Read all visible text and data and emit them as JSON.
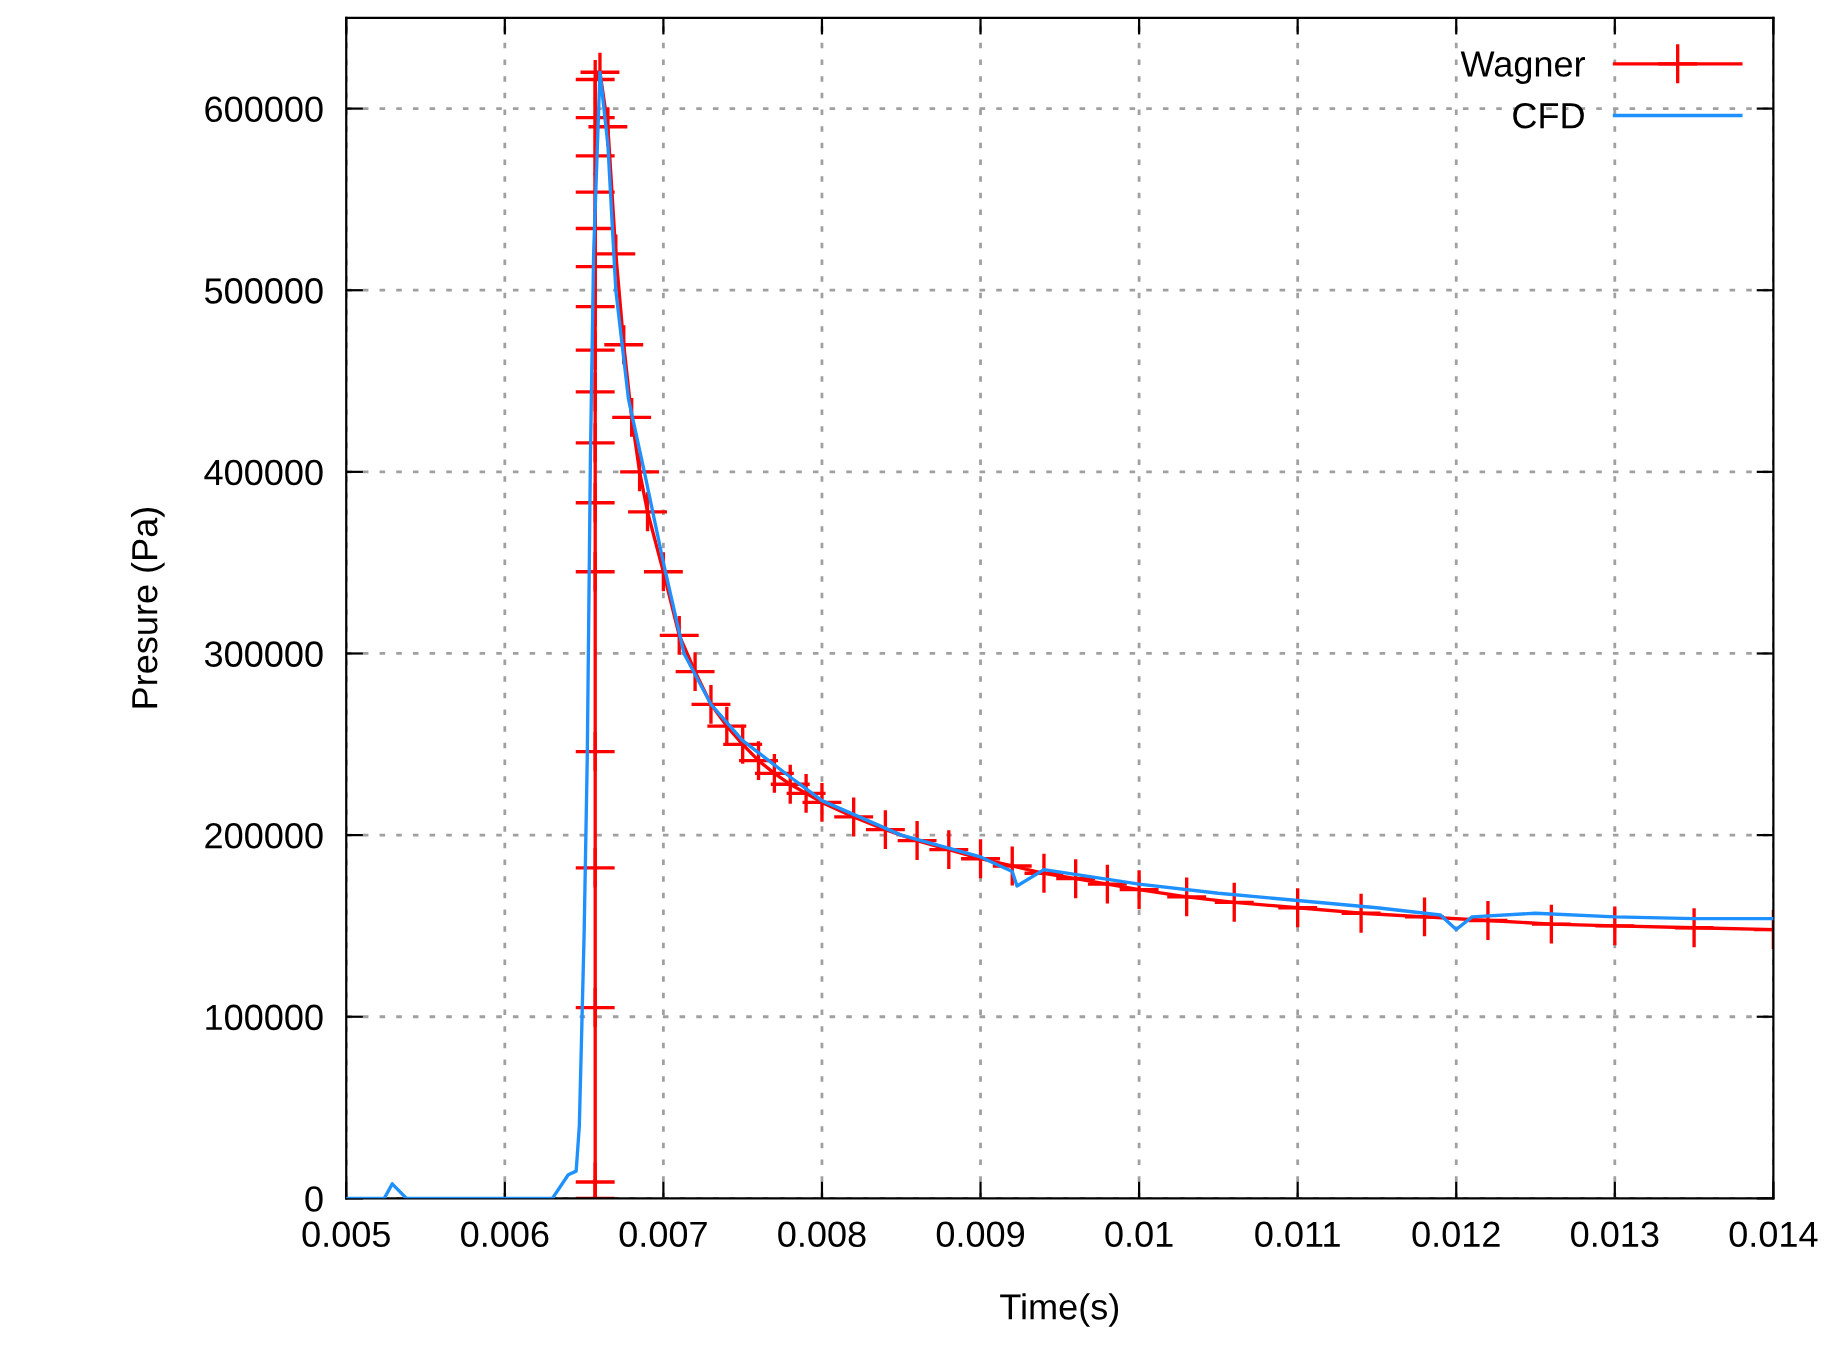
{
  "chart_data": {
    "type": "line",
    "xlabel": "Time(s)",
    "ylabel": "Presure (Pa)",
    "xlim": [
      0.005,
      0.014
    ],
    "xticks": [
      0.005,
      0.006,
      0.007,
      0.008,
      0.009,
      0.01,
      0.011,
      0.012,
      0.013,
      0.014
    ],
    "ylim": [
      0,
      650000
    ],
    "yticks": [
      0,
      100000,
      200000,
      300000,
      400000,
      500000,
      600000
    ],
    "grid": true,
    "legend": "top right",
    "series": [
      {
        "name": "Wagner",
        "color": "#ff0000",
        "marker": "cross",
        "x": [
          0.00657,
          0.00657,
          0.00657,
          0.00657,
          0.00657,
          0.00657,
          0.00657,
          0.00657,
          0.00657,
          0.00657,
          0.00657,
          0.00657,
          0.00657,
          0.00657,
          0.00657,
          0.00657,
          0.00657,
          0.0066,
          0.00665,
          0.0067,
          0.00675,
          0.0068,
          0.00685,
          0.0069,
          0.007,
          0.0071,
          0.0072,
          0.0073,
          0.0074,
          0.0075,
          0.0076,
          0.0077,
          0.0078,
          0.0079,
          0.008,
          0.0082,
          0.0084,
          0.0086,
          0.0088,
          0.009,
          0.0092,
          0.0094,
          0.0096,
          0.0098,
          0.01,
          0.0103,
          0.0106,
          0.011,
          0.0114,
          0.0118,
          0.0122,
          0.0126,
          0.013,
          0.0135,
          0.014
        ],
        "values": [
          0,
          9000,
          105000,
          182000,
          246000,
          345000,
          383000,
          416000,
          444000,
          467000,
          491000,
          513000,
          534000,
          554000,
          574000,
          595000,
          616000,
          620000,
          590000,
          520000,
          470000,
          430000,
          400000,
          378000,
          345000,
          310000,
          290000,
          272000,
          260000,
          250000,
          241000,
          234000,
          228000,
          223000,
          218000,
          210000,
          203000,
          197000,
          192000,
          187000,
          183000,
          179000,
          176000,
          173000,
          170000,
          166000,
          163000,
          160000,
          157000,
          155000,
          153000,
          151000,
          150000,
          149000,
          148000
        ]
      },
      {
        "name": "CFD",
        "color": "#1e90ff",
        "marker": "none",
        "x": [
          0.005,
          0.00524,
          0.00529,
          0.00538,
          0.0063,
          0.0064,
          0.00645,
          0.00647,
          0.0065,
          0.00652,
          0.00654,
          0.00656,
          0.0066,
          0.00665,
          0.0067,
          0.00678,
          0.00688,
          0.007,
          0.00713,
          0.0073,
          0.0075,
          0.0078,
          0.008,
          0.0085,
          0.009,
          0.0092,
          0.00923,
          0.0094,
          0.0097,
          0.01,
          0.0105,
          0.011,
          0.0115,
          0.0119,
          0.012,
          0.0121,
          0.0125,
          0.013,
          0.0135,
          0.014
        ],
        "values": [
          0,
          0,
          8000,
          0,
          0,
          13000,
          15000,
          40000,
          145000,
          243000,
          409000,
          520000,
          620000,
          580000,
          500000,
          440000,
          400000,
          350000,
          300000,
          272000,
          252000,
          232000,
          219000,
          200000,
          188000,
          180000,
          172000,
          181000,
          177000,
          173000,
          168000,
          164000,
          160000,
          156000,
          148000,
          155000,
          157000,
          155000,
          154000,
          154000
        ]
      }
    ]
  }
}
